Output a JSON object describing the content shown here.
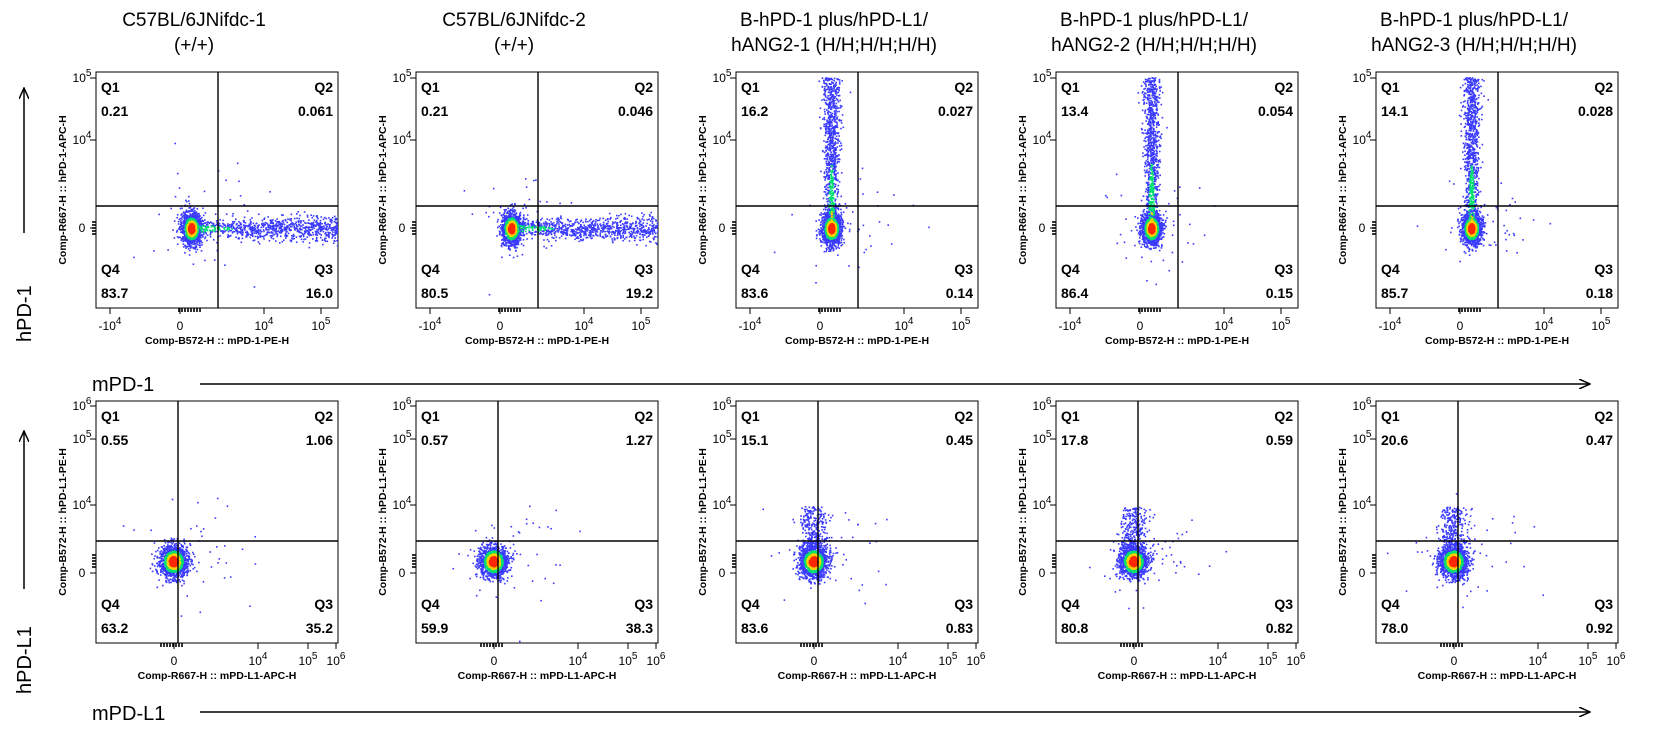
{
  "columns": [
    {
      "line1": "C57BL/6JNifdc-1",
      "line2": "(+/+)"
    },
    {
      "line1": "C57BL/6JNifdc-2",
      "line2": "(+/+)"
    },
    {
      "line1": "B-hPD-1 plus/hPD-L1/",
      "line2": "hANG2-1 (H/H;H/H;H/H)"
    },
    {
      "line1": "B-hPD-1 plus/hPD-L1/",
      "line2": "hANG2-2 (H/H;H/H;H/H)"
    },
    {
      "line1": "B-hPD-1 plus/hPD-L1/",
      "line2": "hANG2-3 (H/H;H/H;H/H)"
    }
  ],
  "rows": [
    {
      "side_label": "hPD-1",
      "bottom_label": "mPD-1"
    },
    {
      "side_label": "hPD-L1",
      "bottom_label": "mPD-L1"
    }
  ],
  "colors": {
    "density_low": "#3a3aff",
    "density_mid": "#00e070",
    "density_high": "#ffd000",
    "density_peak": "#ff2a00",
    "frame": "#000000"
  },
  "chart_data": [
    {
      "type": "scatter",
      "row": 0,
      "col": 0,
      "xlabel": "Comp-B572-H :: mPD-1-PE-H",
      "ylabel": "Comp-R667-H :: hPD-1-APC-H",
      "xticks": [
        "-10^4",
        "0",
        "10^4",
        "10^5"
      ],
      "yticks": [
        "0",
        "10^4",
        "10^5"
      ],
      "quadrant_gate": {
        "x": 1500,
        "y": 1500
      },
      "quadrants": {
        "Q1": "0.21",
        "Q2": "0.061",
        "Q3": "16.0",
        "Q4": "83.7"
      },
      "populations": [
        {
          "shape": "tail-right",
          "center": [
            0,
            0
          ]
        }
      ]
    },
    {
      "type": "scatter",
      "row": 0,
      "col": 1,
      "xlabel": "Comp-B572-H :: mPD-1-PE-H",
      "ylabel": "Comp-R667-H :: hPD-1-APC-H",
      "xticks": [
        "-10^4",
        "0",
        "10^4",
        "10^5"
      ],
      "yticks": [
        "0",
        "10^4",
        "10^5"
      ],
      "quadrant_gate": {
        "x": 1500,
        "y": 1500
      },
      "quadrants": {
        "Q1": "0.21",
        "Q2": "0.046",
        "Q3": "19.2",
        "Q4": "80.5"
      },
      "populations": [
        {
          "shape": "tail-right",
          "center": [
            0,
            0
          ]
        }
      ]
    },
    {
      "type": "scatter",
      "row": 0,
      "col": 2,
      "xlabel": "Comp-B572-H :: mPD-1-PE-H",
      "ylabel": "Comp-R667-H :: hPD-1-APC-H",
      "xticks": [
        "-10^4",
        "0",
        "10^4",
        "10^5"
      ],
      "yticks": [
        "0",
        "10^4",
        "10^5"
      ],
      "quadrant_gate": {
        "x": 1500,
        "y": 1500
      },
      "quadrants": {
        "Q1": "16.2",
        "Q2": "0.027",
        "Q3": "0.14",
        "Q4": "83.6"
      },
      "populations": [
        {
          "shape": "tail-up",
          "center": [
            0,
            0
          ]
        }
      ]
    },
    {
      "type": "scatter",
      "row": 0,
      "col": 3,
      "xlabel": "Comp-B572-H :: mPD-1-PE-H",
      "ylabel": "Comp-R667-H :: hPD-1-APC-H",
      "xticks": [
        "-10^4",
        "0",
        "10^4",
        "10^5"
      ],
      "yticks": [
        "0",
        "10^4",
        "10^5"
      ],
      "quadrant_gate": {
        "x": 1500,
        "y": 1500
      },
      "quadrants": {
        "Q1": "13.4",
        "Q2": "0.054",
        "Q3": "0.15",
        "Q4": "86.4"
      },
      "populations": [
        {
          "shape": "tail-up",
          "center": [
            0,
            0
          ]
        }
      ]
    },
    {
      "type": "scatter",
      "row": 0,
      "col": 4,
      "xlabel": "Comp-B572-H :: mPD-1-PE-H",
      "ylabel": "Comp-R667-H :: hPD-1-APC-H",
      "xticks": [
        "-10^4",
        "0",
        "10^4",
        "10^5"
      ],
      "yticks": [
        "0",
        "10^4",
        "10^5"
      ],
      "quadrant_gate": {
        "x": 1500,
        "y": 1500
      },
      "quadrants": {
        "Q1": "14.1",
        "Q2": "0.028",
        "Q3": "0.18",
        "Q4": "85.7"
      },
      "populations": [
        {
          "shape": "tail-up",
          "center": [
            0,
            0
          ]
        }
      ]
    },
    {
      "type": "scatter",
      "row": 1,
      "col": 0,
      "xlabel": "Comp-R667-H :: mPD-L1-APC-H",
      "ylabel": "Comp-B572-H :: hPD-L1-PE-H",
      "xticks": [
        "0",
        "10^4",
        "10^5",
        "10^6"
      ],
      "yticks": [
        "0",
        "10^4",
        "10^5",
        "10^6"
      ],
      "quadrant_gate": {
        "x": 1000,
        "y": 3000
      },
      "quadrants": {
        "Q1": "0.55",
        "Q2": "1.06",
        "Q3": "35.2",
        "Q4": "63.2"
      },
      "populations": [
        {
          "shape": "blob",
          "center": [
            0,
            0
          ]
        }
      ]
    },
    {
      "type": "scatter",
      "row": 1,
      "col": 1,
      "xlabel": "Comp-R667-H :: mPD-L1-APC-H",
      "ylabel": "Comp-B572-H :: hPD-L1-PE-H",
      "xticks": [
        "0",
        "10^4",
        "10^5",
        "10^6"
      ],
      "yticks": [
        "0",
        "10^4",
        "10^5",
        "10^6"
      ],
      "quadrant_gate": {
        "x": 1000,
        "y": 3000
      },
      "quadrants": {
        "Q1": "0.57",
        "Q2": "1.27",
        "Q3": "38.3",
        "Q4": "59.9"
      },
      "populations": [
        {
          "shape": "blob",
          "center": [
            0,
            0
          ]
        }
      ]
    },
    {
      "type": "scatter",
      "row": 1,
      "col": 2,
      "xlabel": "Comp-R667-H :: mPD-L1-APC-H",
      "ylabel": "Comp-B572-H :: hPD-L1-PE-H",
      "xticks": [
        "0",
        "10^4",
        "10^5",
        "10^6"
      ],
      "yticks": [
        "0",
        "10^4",
        "10^5",
        "10^6"
      ],
      "quadrant_gate": {
        "x": 1000,
        "y": 3000
      },
      "quadrants": {
        "Q1": "15.1",
        "Q2": "0.45",
        "Q3": "0.83",
        "Q4": "83.6"
      },
      "populations": [
        {
          "shape": "blob-up",
          "center": [
            0,
            0
          ]
        }
      ]
    },
    {
      "type": "scatter",
      "row": 1,
      "col": 3,
      "xlabel": "Comp-R667-H :: mPD-L1-APC-H",
      "ylabel": "Comp-B572-H :: hPD-L1-PE-H",
      "xticks": [
        "0",
        "10^4",
        "10^5",
        "10^6"
      ],
      "yticks": [
        "0",
        "10^4",
        "10^5",
        "10^6"
      ],
      "quadrant_gate": {
        "x": 1000,
        "y": 3000
      },
      "quadrants": {
        "Q1": "17.8",
        "Q2": "0.59",
        "Q3": "0.82",
        "Q4": "80.8"
      },
      "populations": [
        {
          "shape": "blob-up",
          "center": [
            0,
            0
          ]
        }
      ]
    },
    {
      "type": "scatter",
      "row": 1,
      "col": 4,
      "xlabel": "Comp-R667-H :: mPD-L1-APC-H",
      "ylabel": "Comp-B572-H :: hPD-L1-PE-H",
      "xticks": [
        "0",
        "10^4",
        "10^5",
        "10^6"
      ],
      "yticks": [
        "0",
        "10^4",
        "10^5",
        "10^6"
      ],
      "quadrant_gate": {
        "x": 1000,
        "y": 3000
      },
      "quadrants": {
        "Q1": "20.6",
        "Q2": "0.47",
        "Q3": "0.92",
        "Q4": "78.0"
      },
      "populations": [
        {
          "shape": "blob-up",
          "center": [
            0,
            0
          ]
        }
      ]
    }
  ]
}
